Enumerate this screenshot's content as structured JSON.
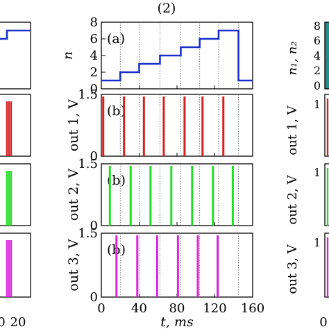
{
  "figure": {
    "title": "(2)",
    "left_panel": {
      "xtick_label": "20",
      "xtick_fragment": "0"
    },
    "right_panel": {
      "ylabels": [
        "n₁, n₂",
        "out 1, V",
        "out 2, V",
        "out 3, V"
      ],
      "ytick_top": "8",
      "ytick_6": "6",
      "ytick_4": "4",
      "ytick_2": "2",
      "ytick_0": "0",
      "ytick_out": "1",
      "xtick": "0"
    }
  },
  "chart_data": [
    {
      "type": "line",
      "panel_label": "(a)",
      "ylabel": "n",
      "ylim": [
        0,
        8
      ],
      "yticks": [
        0,
        2,
        4,
        6,
        8
      ],
      "xlim": [
        0,
        160
      ],
      "grid": "vertical dotted lines at each step",
      "series": [
        {
          "color": "#1a2fc9",
          "steps": [
            {
              "t_start": 0,
              "t_end": 20,
              "n": 1
            },
            {
              "t_start": 20,
              "t_end": 40,
              "n": 2
            },
            {
              "t_start": 40,
              "t_end": 62,
              "n": 3
            },
            {
              "t_start": 62,
              "t_end": 84,
              "n": 4
            },
            {
              "t_start": 84,
              "t_end": 104,
              "n": 5
            },
            {
              "t_start": 104,
              "t_end": 124,
              "n": 6
            },
            {
              "t_start": 124,
              "t_end": 145,
              "n": 7
            },
            {
              "t_start": 145,
              "t_end": 160,
              "n": 1
            }
          ]
        }
      ]
    },
    {
      "type": "bar",
      "panel_label": "(b)",
      "ylabel": "out 1, V",
      "ylim": [
        0,
        1.5
      ],
      "yticks": [
        0,
        1.5
      ],
      "xlim": [
        0,
        160
      ],
      "color": "#d62020",
      "pulse_height": 1.45,
      "pulse_times": [
        2,
        24,
        45,
        66,
        88,
        107,
        129
      ]
    },
    {
      "type": "bar",
      "panel_label": "(b)",
      "ylabel": "out 2, V",
      "ylim": [
        0,
        1.5
      ],
      "yticks": [
        0,
        1.5
      ],
      "xlim": [
        0,
        160
      ],
      "color": "#22dd22",
      "pulse_height": 1.45,
      "pulse_times": [
        9,
        31,
        52,
        74,
        96,
        118,
        139
      ]
    },
    {
      "type": "bar",
      "panel_label": "(b)",
      "ylabel": "out 3, V",
      "ylim": [
        0,
        1.5
      ],
      "yticks": [
        0,
        1.5
      ],
      "xlim": [
        0,
        160
      ],
      "color": "#dd22dd",
      "pulse_height": 1.45,
      "pulse_times": [
        16,
        38,
        59,
        81,
        102,
        123
      ],
      "xticks": [
        0,
        40,
        80,
        120,
        160
      ],
      "xlabel": "t, ms"
    }
  ],
  "left_strip": {
    "step_color": "#1a2fc9",
    "pulse_colors": [
      "#d62020",
      "#22dd22",
      "#dd22dd"
    ]
  }
}
